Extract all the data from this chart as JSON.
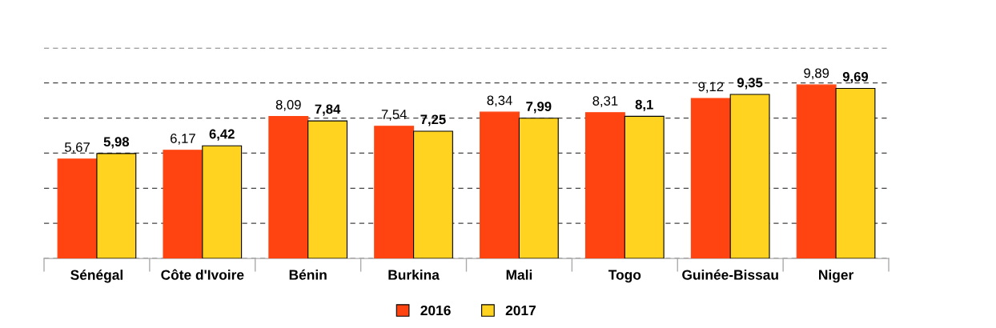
{
  "chart_data": {
    "type": "bar",
    "categories": [
      "Sénégal",
      "Côte d'Ivoire",
      "Bénin",
      "Burkina",
      "Mali",
      "Togo",
      "Guinée-Bissau",
      "Niger"
    ],
    "series": [
      {
        "name": "2016",
        "color": "#ff4411",
        "values": [
          5.67,
          6.17,
          8.09,
          7.54,
          8.34,
          8.31,
          9.12,
          9.89
        ],
        "value_labels": [
          "5,67",
          "6,17",
          "8,09",
          "7,54",
          "8,34",
          "8,31",
          "9,12",
          "9,89"
        ]
      },
      {
        "name": "2017",
        "color": "#ffd320",
        "values": [
          5.98,
          6.42,
          7.84,
          7.25,
          7.99,
          8.1,
          9.35,
          9.69
        ],
        "value_labels": [
          "5,98",
          "6,42",
          "7,84",
          "7,25",
          "7,99",
          "8,1",
          "9,35",
          "9,69"
        ]
      }
    ],
    "ylim": [
      0,
      12
    ],
    "yticks": [
      {
        "value": 0,
        "label": null
      },
      {
        "value": 2,
        "label": null
      },
      {
        "value": 4,
        "label": null
      },
      {
        "value": 6,
        "label": null
      },
      {
        "value": 8,
        "label": null
      },
      {
        "value": 10,
        "label": null
      },
      {
        "value": 12,
        "label": null
      }
    ],
    "tick_labels": "x",
    "grid": "y",
    "legend": "bottom"
  }
}
